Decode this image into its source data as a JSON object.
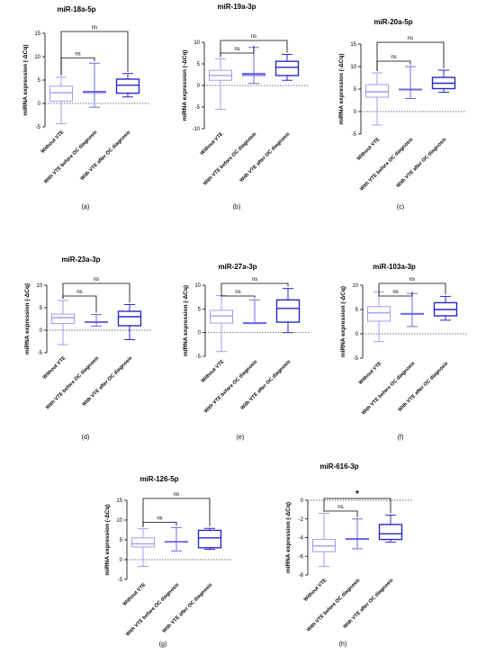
{
  "figure": {
    "categories": [
      "Without VTE",
      "With VTE before OC diagnosis",
      "With VTE after OC diagnosis"
    ],
    "series_colors": [
      "#9f9ff0",
      "#6b6be6",
      "#2828c8"
    ]
  },
  "chart_data": [
    {
      "type": "box",
      "title": "miR-18a-5p",
      "panel_label": "(a)",
      "ylabel": "miRNA expression (-ΔCq)",
      "ylim": [
        -5,
        15
      ],
      "yticks": [
        -5,
        0,
        5,
        10,
        15
      ],
      "categories": [
        "Without VTE",
        "With VTE before OC diagnosis",
        "With VTE after OC diagnosis"
      ],
      "boxes": [
        {
          "min": -4.3,
          "q1": 0.5,
          "median": 2.3,
          "q3": 3.7,
          "max": 5.6
        },
        {
          "min": -0.8,
          "q1": 2.3,
          "median": 2.5,
          "q3": 2.6,
          "max": 8.6
        },
        {
          "min": 1.4,
          "q1": 2.2,
          "median": 3.9,
          "q3": 5.2,
          "max": 6.4
        }
      ],
      "comparisons": [
        {
          "from": 0,
          "to": 1,
          "label": "ns"
        },
        {
          "from": 0,
          "to": 2,
          "label": "ns"
        }
      ]
    },
    {
      "type": "box",
      "title": "miR-19a-3p",
      "panel_label": "(b)",
      "ylabel": "miRNA expression (-ΔCq)",
      "ylim": [
        -10,
        10
      ],
      "yticks": [
        -10,
        -5,
        0,
        5,
        10
      ],
      "categories": [
        "Without VTE",
        "With VTE before OC diagnosis",
        "With VTE after OC diagnosis"
      ],
      "boxes": [
        {
          "min": -5.5,
          "q1": 1.2,
          "median": 2.3,
          "q3": 3.5,
          "max": 6.2
        },
        {
          "min": 0.5,
          "q1": 2.3,
          "median": 2.6,
          "q3": 2.8,
          "max": 8.8
        },
        {
          "min": 1.2,
          "q1": 2.3,
          "median": 4.2,
          "q3": 5.6,
          "max": 7.2
        }
      ],
      "comparisons": [
        {
          "from": 0,
          "to": 1,
          "label": "ns"
        },
        {
          "from": 0,
          "to": 2,
          "label": "ns"
        }
      ]
    },
    {
      "type": "box",
      "title": "miR-20a-5p",
      "panel_label": "(c)",
      "ylabel": "miRNA expression (-ΔCq)",
      "ylim": [
        -5,
        15
      ],
      "yticks": [
        -5,
        0,
        5,
        10,
        15
      ],
      "categories": [
        "Without VTE",
        "With VTE before OC diagnosis",
        "With VTE after OC diagnosis"
      ],
      "boxes": [
        {
          "min": -3.0,
          "q1": 3.2,
          "median": 4.4,
          "q3": 6.0,
          "max": 8.6
        },
        {
          "min": 2.9,
          "q1": 4.8,
          "median": 4.9,
          "q3": 5.0,
          "max": 10.0
        },
        {
          "min": 4.3,
          "q1": 5.1,
          "median": 6.3,
          "q3": 7.6,
          "max": 9.2
        }
      ],
      "comparisons": [
        {
          "from": 0,
          "to": 1,
          "label": "ns"
        },
        {
          "from": 0,
          "to": 2,
          "label": "ns"
        }
      ]
    },
    {
      "type": "box",
      "title": "miR-23a-3p",
      "panel_label": "(d)",
      "ylabel": "miRNA expression (-ΔCq)",
      "ylim": [
        -5,
        10
      ],
      "yticks": [
        -5,
        0,
        5,
        10
      ],
      "categories": [
        "Without VTE",
        "With VTE before OC diagnosis",
        "With VTE after OC diagnosis"
      ],
      "boxes": [
        {
          "min": -3.2,
          "q1": 1.5,
          "median": 2.8,
          "q3": 3.6,
          "max": 6.6
        },
        {
          "min": 0.9,
          "q1": 1.7,
          "median": 1.8,
          "q3": 1.9,
          "max": 3.5
        },
        {
          "min": -2.1,
          "q1": 1.0,
          "median": 3.0,
          "q3": 4.2,
          "max": 5.7
        }
      ],
      "comparisons": [
        {
          "from": 0,
          "to": 1,
          "label": "ns"
        },
        {
          "from": 0,
          "to": 2,
          "label": "ns"
        }
      ]
    },
    {
      "type": "box",
      "title": "miR-27a-3p",
      "panel_label": "(e)",
      "ylabel": "miRNA expression (-ΔCq)",
      "ylim": [
        -5,
        10
      ],
      "yticks": [
        -5,
        0,
        5,
        10
      ],
      "categories": [
        "Without VTE",
        "With VTE before OC diagnosis",
        "With VTE after OC diagnosis"
      ],
      "boxes": [
        {
          "min": -4.0,
          "q1": 2.0,
          "median": 3.5,
          "q3": 4.7,
          "max": 7.8
        },
        {
          "min": 1.9,
          "q1": 1.9,
          "median": 2.0,
          "q3": 2.1,
          "max": 6.9
        },
        {
          "min": 0.0,
          "q1": 2.2,
          "median": 5.1,
          "q3": 6.9,
          "max": 9.3
        }
      ],
      "comparisons": [
        {
          "from": 0,
          "to": 1,
          "label": "ns"
        },
        {
          "from": 0,
          "to": 2,
          "label": "ns"
        }
      ]
    },
    {
      "type": "box",
      "title": "miR-103a-3p",
      "panel_label": "(f)",
      "ylabel": "miRNA expression (-ΔCq)",
      "ylim": [
        -5,
        10
      ],
      "yticks": [
        -5,
        0,
        5,
        10
      ],
      "categories": [
        "Without VTE",
        "With VTE before OC diagnosis",
        "With VTE after OC diagnosis"
      ],
      "boxes": [
        {
          "min": -1.6,
          "q1": 2.6,
          "median": 4.3,
          "q3": 5.6,
          "max": 8.6
        },
        {
          "min": 1.5,
          "q1": 4.0,
          "median": 4.1,
          "q3": 4.2,
          "max": 8.3
        },
        {
          "min": 2.8,
          "q1": 3.7,
          "median": 5.0,
          "q3": 6.4,
          "max": 7.7
        }
      ],
      "comparisons": [
        {
          "from": 0,
          "to": 1,
          "label": "ns"
        },
        {
          "from": 0,
          "to": 2,
          "label": "ns"
        }
      ]
    },
    {
      "type": "box",
      "title": "miR-126-5p",
      "panel_label": "(g)",
      "ylabel": "miRNA expression (-ΔCq)",
      "ylim": [
        -5,
        15
      ],
      "yticks": [
        -5,
        0,
        5,
        10,
        15
      ],
      "categories": [
        "Without VTE",
        "With VTE before OC diagnosis",
        "With VTE after OC diagnosis"
      ],
      "boxes": [
        {
          "min": -1.7,
          "q1": 3.2,
          "median": 4.0,
          "q3": 5.5,
          "max": 7.8
        },
        {
          "min": 2.2,
          "q1": 4.4,
          "median": 4.5,
          "q3": 4.6,
          "max": 8.1
        },
        {
          "min": 2.6,
          "q1": 3.0,
          "median": 5.5,
          "q3": 7.4,
          "max": 7.9
        }
      ],
      "comparisons": [
        {
          "from": 0,
          "to": 1,
          "label": "ns"
        },
        {
          "from": 0,
          "to": 2,
          "label": "ns"
        }
      ]
    },
    {
      "type": "box",
      "title": "miR-616-3p",
      "panel_label": "(h)",
      "ylabel": "miRNA expression (-ΔCq)",
      "ylim": [
        -8,
        0
      ],
      "yticks": [
        -8,
        -6,
        -4,
        -2,
        0
      ],
      "categories": [
        "Without VTE",
        "With VTE before OC diagnosis",
        "With VTE after OC diagnosis"
      ],
      "boxes": [
        {
          "min": -7.1,
          "q1": -5.5,
          "median": -4.9,
          "q3": -4.2,
          "max": -1.4
        },
        {
          "min": -5.2,
          "q1": -4.2,
          "median": -4.15,
          "q3": -4.1,
          "max": -2.0
        },
        {
          "min": -4.5,
          "q1": -4.2,
          "median": -3.6,
          "q3": -2.6,
          "max": -1.6
        }
      ],
      "comparisons": [
        {
          "from": 0,
          "to": 1,
          "label": "ns"
        },
        {
          "from": 0,
          "to": 2,
          "label": "*"
        }
      ]
    }
  ]
}
